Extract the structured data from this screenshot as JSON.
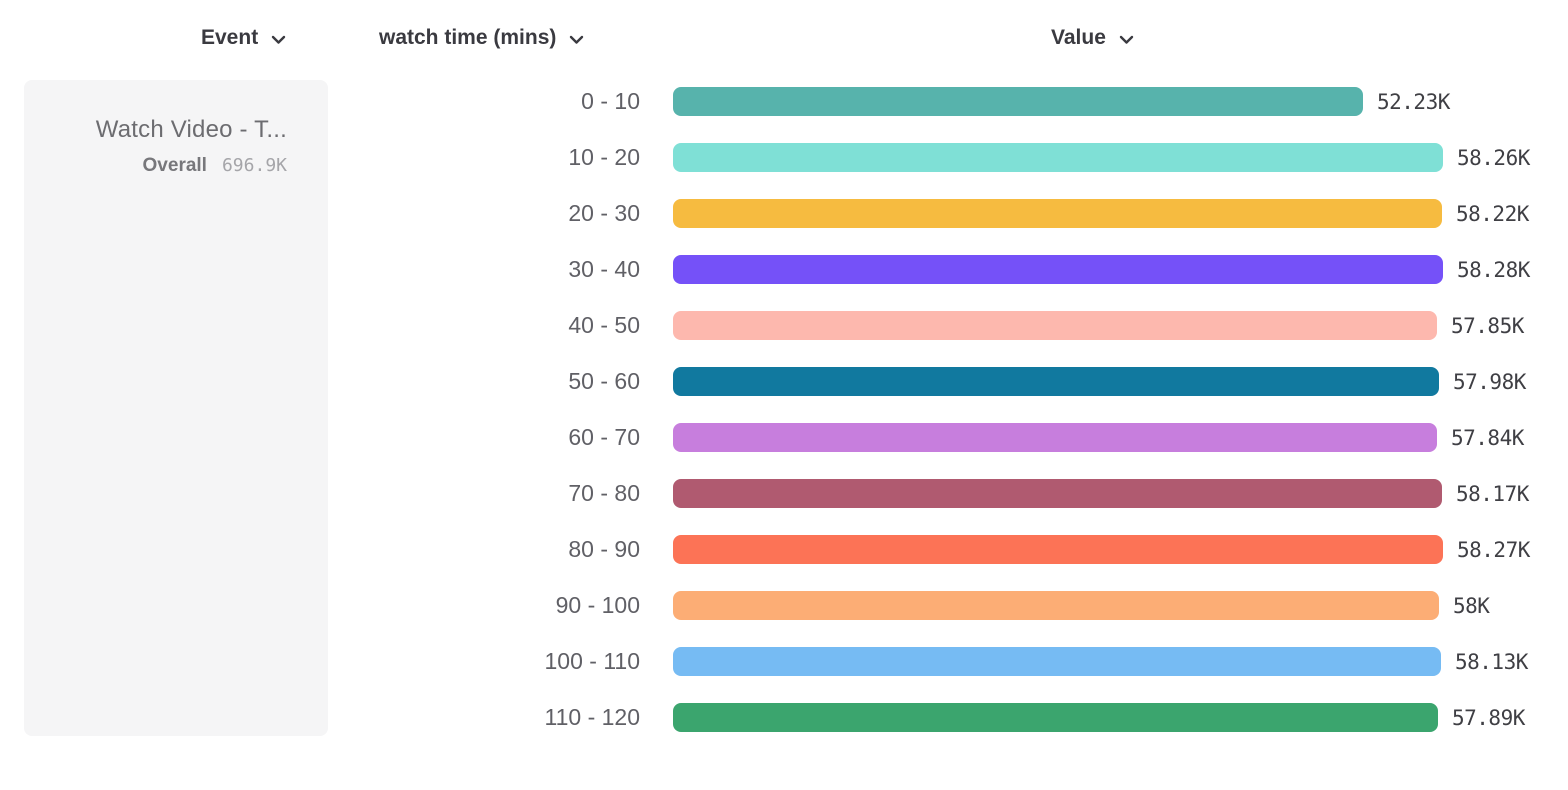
{
  "header": {
    "event_label": "Event",
    "breakdown_label": "watch time (mins)",
    "value_label": "Value"
  },
  "event_card": {
    "title": "Watch Video - T...",
    "overall_label": "Overall",
    "overall_value": "696.9K"
  },
  "chart_data": {
    "type": "bar",
    "orientation": "horizontal",
    "title": "",
    "xlabel": "Value",
    "ylabel": "watch time (mins)",
    "categories": [
      "0 - 10",
      "10 - 20",
      "20 - 30",
      "30 - 40",
      "40 - 50",
      "50 - 60",
      "60 - 70",
      "70 - 80",
      "80 - 90",
      "90 - 100",
      "100 - 110",
      "110 - 120"
    ],
    "values": [
      52230,
      58260,
      58220,
      58280,
      57850,
      57980,
      57840,
      58170,
      58270,
      58000,
      58130,
      57890
    ],
    "value_labels": [
      "52.23K",
      "58.26K",
      "58.22K",
      "58.28K",
      "57.85K",
      "57.98K",
      "57.84K",
      "58.17K",
      "58.27K",
      "58K",
      "58.13K",
      "57.89K"
    ],
    "bar_colors": [
      "#57b3ac",
      "#7fe0d6",
      "#f6bb40",
      "#7551f8",
      "#fdb8ae",
      "#11799f",
      "#c77edd",
      "#b05a70",
      "#fc7356",
      "#fcad75",
      "#76bbf3",
      "#3ba56e"
    ],
    "xlim": [
      0,
      58280
    ],
    "grid": false,
    "legend": false
  }
}
